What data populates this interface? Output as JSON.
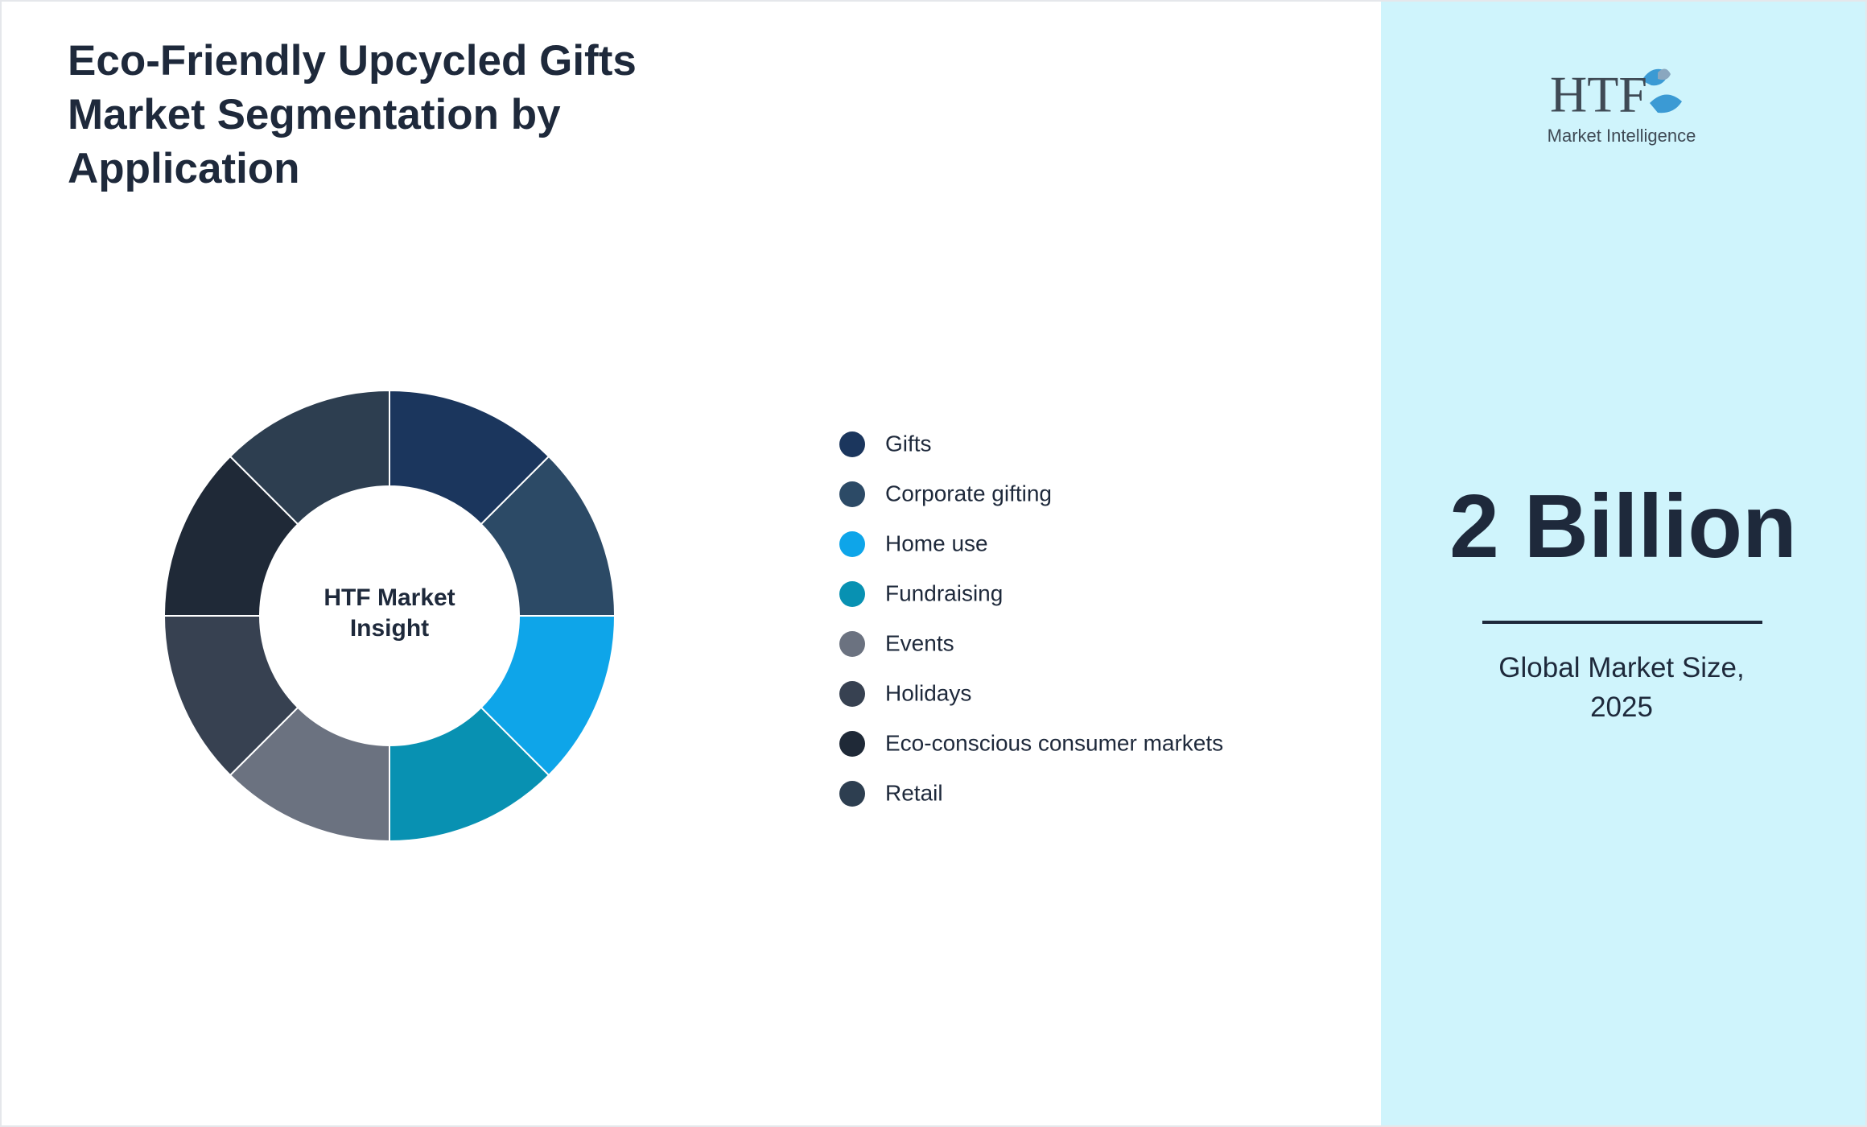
{
  "chart_data": {
    "type": "pie",
    "title": "Eco-Friendly Upcycled Gifts Market Segmentation by Application",
    "center_label": "HTF Market Insight",
    "categories": [
      "Gifts",
      "Corporate gifting",
      "Home use",
      "Fundraising",
      "Events",
      "Holidays",
      "Eco-conscious consumer markets",
      "Retail"
    ],
    "values": [
      12.5,
      12.5,
      12.5,
      12.5,
      12.5,
      12.5,
      12.5,
      12.5
    ],
    "colors": [
      "#1b365d",
      "#2c4a66",
      "#0ea5e9",
      "#0891b2",
      "#6b7280",
      "#374151",
      "#1f2937",
      "#2d3e50"
    ],
    "donut": true
  },
  "logo": {
    "mark": "HTF",
    "tagline": "Market Intelligence"
  },
  "market_size": {
    "value_label": "2 Billion",
    "caption": "Global Market Size, 2025"
  }
}
